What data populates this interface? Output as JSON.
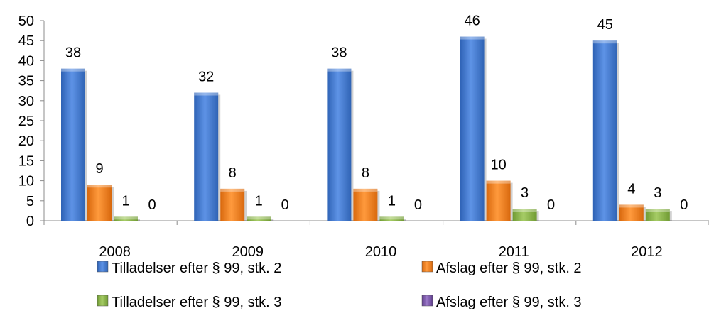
{
  "chart_data": {
    "type": "bar",
    "title": "",
    "xlabel": "",
    "ylabel": "",
    "categories": [
      "2008",
      "2009",
      "2010",
      "2011",
      "2012"
    ],
    "ylim": [
      0,
      50
    ],
    "yticks": [
      "0",
      "5",
      "10",
      "15",
      "20",
      "25",
      "30",
      "35",
      "40",
      "45",
      "50"
    ],
    "grid": false,
    "legend_position": "bottom",
    "series": [
      {
        "name": "Tilladelser efter § 99, stk. 2",
        "values": [
          38,
          32,
          38,
          46,
          45
        ],
        "color": "#4a7fd3"
      },
      {
        "name": "Afslag efter § 99, stk. 2",
        "values": [
          9,
          8,
          8,
          10,
          4
        ],
        "color": "#f0801f"
      },
      {
        "name": "Tilladelser efter § 99, stk. 3",
        "values": [
          1,
          1,
          1,
          3,
          3
        ],
        "color": "#8cb64b"
      },
      {
        "name": "Afslag efter § 99, stk. 3",
        "values": [
          0,
          0,
          0,
          0,
          0
        ],
        "color": "#7f5aab"
      }
    ]
  }
}
